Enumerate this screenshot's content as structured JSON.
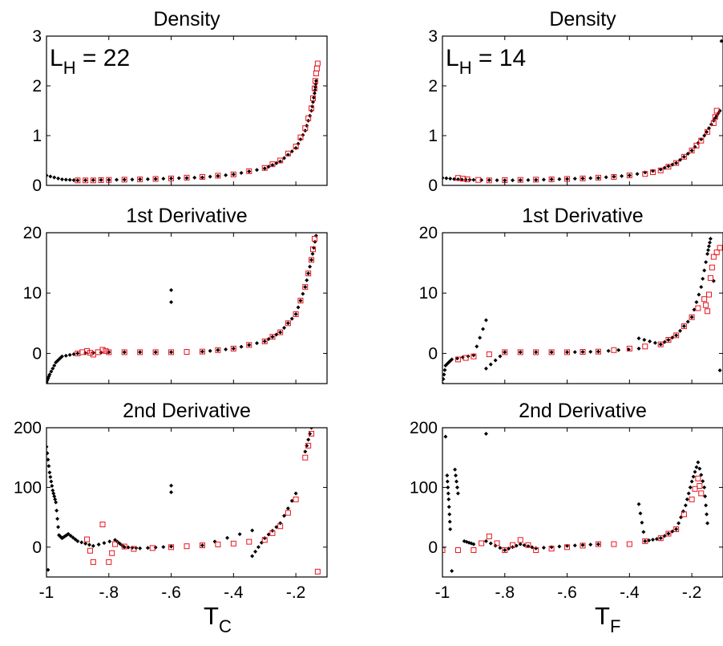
{
  "figure": {
    "columns": [
      {
        "xlabel_main": "T",
        "xlabel_sub": "C",
        "annotation_main": "L",
        "annotation_sub": "H",
        "annotation_value": " = 22"
      },
      {
        "xlabel_main": "T",
        "xlabel_sub": "F",
        "annotation_main": "L",
        "annotation_sub": "H",
        "annotation_value": " = 14"
      }
    ],
    "colors": {
      "black_series": "#000000",
      "red_series": "#e8141e"
    }
  },
  "chart_data": [
    {
      "type": "scatter",
      "title": "Density",
      "column": 0,
      "row": 0,
      "xlim": [
        -1.0,
        -0.1
      ],
      "ylim": [
        0,
        3
      ],
      "xticks": [],
      "yticks": [
        0,
        1,
        2,
        3
      ],
      "series": [
        {
          "marker": "dot",
          "color": "#000000",
          "points": [
            [
              -1.0,
              0.2
            ],
            [
              -0.95,
              0.12
            ],
            [
              -0.9,
              0.1
            ],
            [
              -0.8,
              0.11
            ],
            [
              -0.7,
              0.12
            ],
            [
              -0.6,
              0.14
            ],
            [
              -0.5,
              0.16
            ],
            [
              -0.4,
              0.22
            ],
            [
              -0.3,
              0.34
            ],
            [
              -0.25,
              0.48
            ],
            [
              -0.2,
              0.75
            ],
            [
              -0.17,
              1.1
            ],
            [
              -0.15,
              1.5
            ],
            [
              -0.14,
              1.85
            ],
            [
              -0.135,
              2.1
            ]
          ]
        },
        {
          "marker": "square",
          "color": "#e8141e",
          "points": [
            [
              -0.9,
              0.1
            ],
            [
              -0.85,
              0.1
            ],
            [
              -0.8,
              0.11
            ],
            [
              -0.7,
              0.12
            ],
            [
              -0.6,
              0.14
            ],
            [
              -0.5,
              0.17
            ],
            [
              -0.4,
              0.22
            ],
            [
              -0.3,
              0.35
            ],
            [
              -0.25,
              0.5
            ],
            [
              -0.2,
              0.78
            ],
            [
              -0.17,
              1.15
            ],
            [
              -0.15,
              1.55
            ],
            [
              -0.14,
              1.95
            ],
            [
              -0.135,
              2.25
            ],
            [
              -0.13,
              2.45
            ]
          ]
        }
      ]
    },
    {
      "type": "scatter",
      "title": "Density",
      "column": 1,
      "row": 0,
      "xlim": [
        -1.0,
        -0.1
      ],
      "ylim": [
        0,
        3
      ],
      "xticks": [],
      "yticks": [
        0,
        1,
        2,
        3
      ],
      "series": [
        {
          "marker": "dot",
          "color": "#000000",
          "points": [
            [
              -1.0,
              0.15
            ],
            [
              -0.95,
              0.12
            ],
            [
              -0.9,
              0.11
            ],
            [
              -0.8,
              0.1
            ],
            [
              -0.7,
              0.11
            ],
            [
              -0.6,
              0.13
            ],
            [
              -0.5,
              0.15
            ],
            [
              -0.4,
              0.2
            ],
            [
              -0.3,
              0.32
            ],
            [
              -0.25,
              0.45
            ],
            [
              -0.2,
              0.7
            ],
            [
              -0.16,
              1.0
            ],
            [
              -0.13,
              1.3
            ],
            [
              -0.11,
              1.5
            ],
            [
              -0.105,
              2.9
            ]
          ]
        },
        {
          "marker": "square",
          "color": "#e8141e",
          "points": [
            [
              -0.95,
              0.15
            ],
            [
              -0.92,
              0.12
            ],
            [
              -0.85,
              0.1
            ],
            [
              -0.75,
              0.11
            ],
            [
              -0.65,
              0.12
            ],
            [
              -0.55,
              0.14
            ],
            [
              -0.45,
              0.17
            ],
            [
              -0.35,
              0.23
            ],
            [
              -0.3,
              0.3
            ],
            [
              -0.25,
              0.45
            ],
            [
              -0.2,
              0.7
            ],
            [
              -0.17,
              0.9
            ],
            [
              -0.13,
              1.25
            ],
            [
              -0.12,
              1.5
            ]
          ]
        }
      ]
    },
    {
      "type": "scatter",
      "title": "1st Derivative",
      "column": 0,
      "row": 1,
      "xlim": [
        -1.0,
        -0.1
      ],
      "ylim": [
        -5,
        20
      ],
      "xticks": [],
      "yticks": [
        0,
        10,
        20
      ],
      "series": [
        {
          "marker": "dot",
          "color": "#000000",
          "points": [
            [
              -1.0,
              -4.8
            ],
            [
              -0.99,
              -3.5
            ],
            [
              -0.97,
              -1.5
            ],
            [
              -0.95,
              -0.5
            ],
            [
              -0.9,
              0.0
            ],
            [
              -0.8,
              0.2
            ],
            [
              -0.6,
              0.2
            ],
            [
              -0.6,
              10.5
            ],
            [
              -0.6,
              8.5
            ],
            [
              -0.5,
              0.3
            ],
            [
              -0.4,
              0.8
            ],
            [
              -0.3,
              2.0
            ],
            [
              -0.25,
              3.5
            ],
            [
              -0.2,
              6.5
            ],
            [
              -0.17,
              11.0
            ],
            [
              -0.15,
              15.5
            ],
            [
              -0.135,
              19.5
            ]
          ]
        },
        {
          "marker": "square",
          "color": "#e8141e",
          "points": [
            [
              -0.9,
              0.0
            ],
            [
              -0.87,
              0.4
            ],
            [
              -0.85,
              -0.2
            ],
            [
              -0.82,
              0.6
            ],
            [
              -0.8,
              0.2
            ],
            [
              -0.7,
              0.2
            ],
            [
              -0.6,
              0.2
            ],
            [
              -0.5,
              0.3
            ],
            [
              -0.4,
              0.8
            ],
            [
              -0.3,
              2.0
            ],
            [
              -0.25,
              3.5
            ],
            [
              -0.2,
              6.5
            ],
            [
              -0.17,
              11.0
            ],
            [
              -0.15,
              15.5
            ],
            [
              -0.14,
              19.0
            ]
          ]
        }
      ]
    },
    {
      "type": "scatter",
      "title": "1st Derivative",
      "column": 1,
      "row": 1,
      "xlim": [
        -1.0,
        -0.1
      ],
      "ylim": [
        -5,
        20
      ],
      "xticks": [],
      "yticks": [
        0,
        10,
        20
      ],
      "series": [
        {
          "marker": "dot",
          "color": "#000000",
          "points": [
            [
              -1.0,
              -5.0
            ],
            [
              -0.99,
              -2.0
            ],
            [
              -0.97,
              -1.0
            ],
            [
              -0.9,
              -0.3
            ],
            [
              -0.86,
              5.5
            ],
            [
              -0.86,
              -2.5
            ],
            [
              -0.8,
              0.2
            ],
            [
              -0.6,
              0.2
            ],
            [
              -0.5,
              0.3
            ],
            [
              -0.37,
              0.8
            ],
            [
              -0.37,
              2.5
            ],
            [
              -0.3,
              1.5
            ],
            [
              -0.25,
              3.0
            ],
            [
              -0.2,
              6.0
            ],
            [
              -0.17,
              11.0
            ],
            [
              -0.15,
              16.5
            ],
            [
              -0.14,
              19.0
            ],
            [
              -0.13,
              12.0
            ],
            [
              -0.11,
              -2.8
            ]
          ]
        },
        {
          "marker": "square",
          "color": "#e8141e",
          "points": [
            [
              -0.95,
              -1.0
            ],
            [
              -0.9,
              -0.5
            ],
            [
              -0.8,
              0.2
            ],
            [
              -0.7,
              0.2
            ],
            [
              -0.6,
              0.2
            ],
            [
              -0.5,
              0.3
            ],
            [
              -0.4,
              0.8
            ],
            [
              -0.3,
              1.5
            ],
            [
              -0.25,
              3.0
            ],
            [
              -0.2,
              6.0
            ],
            [
              -0.16,
              9.0
            ],
            [
              -0.15,
              7.0
            ],
            [
              -0.14,
              12.5
            ],
            [
              -0.13,
              16.0
            ],
            [
              -0.11,
              17.5
            ]
          ]
        }
      ]
    },
    {
      "type": "scatter",
      "title": "2nd Derivative",
      "column": 0,
      "row": 2,
      "xlim": [
        -1.0,
        -0.1
      ],
      "ylim": [
        -50,
        200
      ],
      "xticks": [
        -1,
        -0.8,
        -0.6,
        -0.4,
        -0.2
      ],
      "yticks": [
        0,
        100,
        200
      ],
      "series": [
        {
          "marker": "dot",
          "color": "#000000",
          "points": [
            [
              -1.0,
              168
            ],
            [
              -0.99,
              125
            ],
            [
              -0.98,
              95
            ],
            [
              -0.97,
              75
            ],
            [
              -0.96,
              20
            ],
            [
              -0.95,
              15
            ],
            [
              -0.93,
              22
            ],
            [
              -0.9,
              10
            ],
            [
              -0.85,
              2
            ],
            [
              -0.78,
              12
            ],
            [
              -0.75,
              0
            ],
            [
              -0.7,
              -2
            ],
            [
              -0.6,
              1
            ],
            [
              -0.6,
              103
            ],
            [
              -0.6,
              92
            ],
            [
              -0.5,
              3
            ],
            [
              -0.34,
              28
            ],
            [
              -0.34,
              -15
            ],
            [
              -0.3,
              15
            ],
            [
              -0.25,
              40
            ],
            [
              -0.2,
              90
            ],
            [
              -0.17,
              160
            ],
            [
              -0.15,
              200
            ],
            [
              -0.995,
              -38
            ]
          ]
        },
        {
          "marker": "square",
          "color": "#e8141e",
          "points": [
            [
              -0.87,
              13
            ],
            [
              -0.85,
              -25
            ],
            [
              -0.82,
              38
            ],
            [
              -0.8,
              -25
            ],
            [
              -0.78,
              5
            ],
            [
              -0.72,
              -3
            ],
            [
              -0.6,
              0
            ],
            [
              -0.5,
              3
            ],
            [
              -0.4,
              6
            ],
            [
              -0.3,
              12
            ],
            [
              -0.25,
              35
            ],
            [
              -0.2,
              80
            ],
            [
              -0.17,
              150
            ],
            [
              -0.15,
              190
            ],
            [
              -0.13,
              -41
            ]
          ]
        }
      ]
    },
    {
      "type": "scatter",
      "title": "2nd Derivative",
      "column": 1,
      "row": 2,
      "xlim": [
        -1.0,
        -0.1
      ],
      "ylim": [
        -50,
        200
      ],
      "xticks": [
        -1,
        -0.8,
        -0.6,
        -0.4,
        -0.2
      ],
      "yticks": [
        0,
        100,
        200
      ],
      "series": [
        {
          "marker": "dot",
          "color": "#000000",
          "points": [
            [
              -0.99,
              185
            ],
            [
              -0.985,
              120
            ],
            [
              -0.98,
              80
            ],
            [
              -0.975,
              30
            ],
            [
              -0.97,
              -40
            ],
            [
              -0.96,
              130
            ],
            [
              -0.95,
              90
            ],
            [
              -0.93,
              10
            ],
            [
              -0.9,
              5
            ],
            [
              -0.86,
              190
            ],
            [
              -0.86,
              10
            ],
            [
              -0.8,
              -5
            ],
            [
              -0.75,
              5
            ],
            [
              -0.7,
              -2
            ],
            [
              -0.6,
              2
            ],
            [
              -0.5,
              5
            ],
            [
              -0.37,
              72
            ],
            [
              -0.35,
              10
            ],
            [
              -0.3,
              15
            ],
            [
              -0.25,
              30
            ],
            [
              -0.22,
              70
            ],
            [
              -0.2,
              110
            ],
            [
              -0.18,
              142
            ],
            [
              -0.16,
              100
            ],
            [
              -0.15,
              40
            ]
          ]
        },
        {
          "marker": "square",
          "color": "#e8141e",
          "points": [
            [
              -1.0,
              -5
            ],
            [
              -0.9,
              -5
            ],
            [
              -0.85,
              18
            ],
            [
              -0.8,
              -5
            ],
            [
              -0.75,
              12
            ],
            [
              -0.7,
              -5
            ],
            [
              -0.6,
              0
            ],
            [
              -0.5,
              5
            ],
            [
              -0.4,
              5
            ],
            [
              -0.3,
              15
            ],
            [
              -0.25,
              30
            ],
            [
              -0.2,
              80
            ],
            [
              -0.18,
              115
            ],
            [
              -0.17,
              90
            ]
          ]
        }
      ]
    }
  ]
}
